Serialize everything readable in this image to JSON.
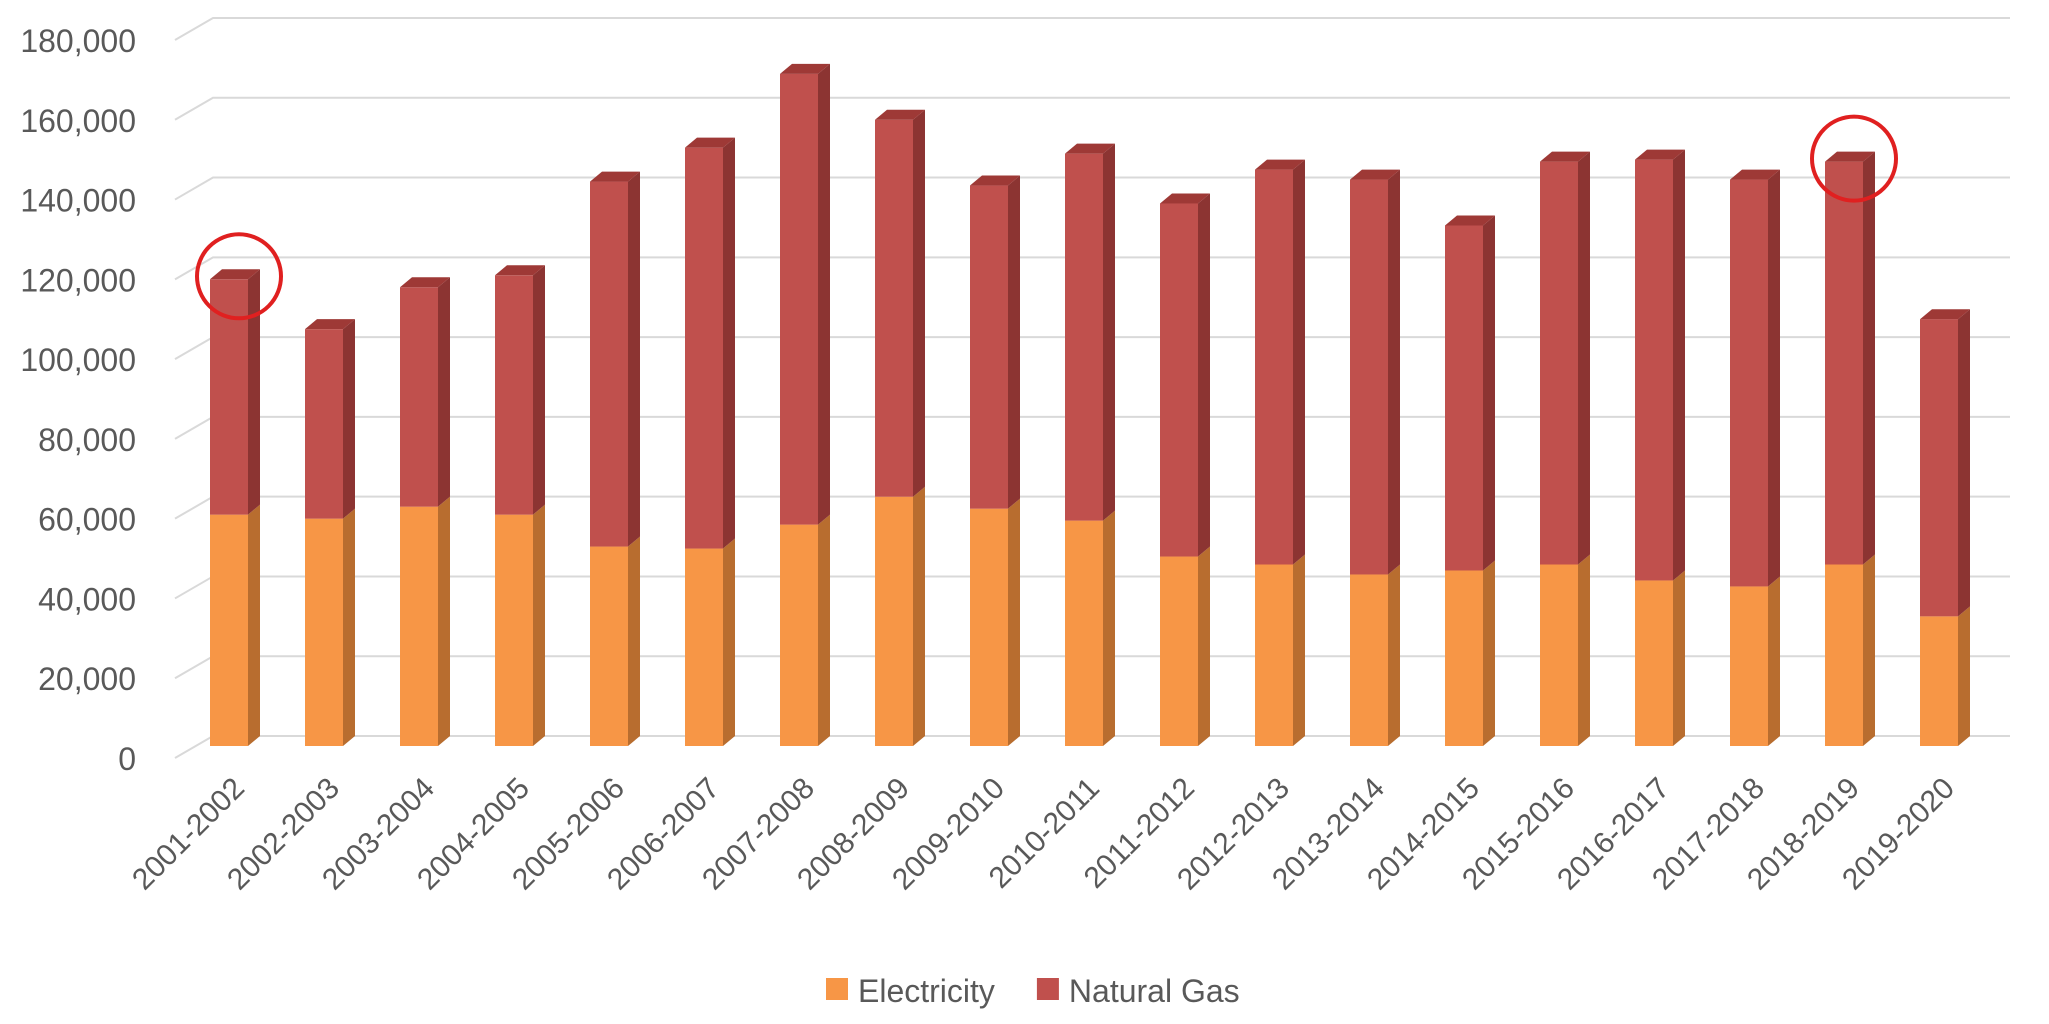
{
  "chart_data": {
    "type": "bar",
    "stacked": true,
    "three_d": true,
    "categories": [
      "2001-2002",
      "2002-2003",
      "2003-2004",
      "2004-2005",
      "2005-2006",
      "2006-2007",
      "2007-2008",
      "2008-2009",
      "2009-2010",
      "2010-2011",
      "2011-2012",
      "2012-2013",
      "2013-2014",
      "2014-2015",
      "2015-2016",
      "2016-2017",
      "2017-2018",
      "2018-2019",
      "2019-2020"
    ],
    "series": [
      {
        "name": "Electricity",
        "color": "#f79646",
        "side_color": "#b86d2f",
        "top_color": "#c07030",
        "values": [
          58000,
          57000,
          60000,
          58000,
          50000,
          49500,
          55500,
          62500,
          59500,
          56500,
          47500,
          45500,
          43000,
          44000,
          45500,
          41500,
          40000,
          45500,
          32500
        ]
      },
      {
        "name": "Natural Gas",
        "color": "#c0504d",
        "side_color": "#8c3432",
        "top_color": "#9e3936",
        "values": [
          59000,
          47500,
          55000,
          60000,
          91500,
          100500,
          113000,
          94500,
          81000,
          92000,
          88500,
          99000,
          99000,
          86500,
          101000,
          105500,
          102000,
          101000,
          74500
        ]
      }
    ],
    "title": "",
    "xlabel": "",
    "ylabel": "",
    "ylim": [
      0,
      180000
    ],
    "yticks": [
      "0",
      "20,000",
      "40,000",
      "60,000",
      "80,000",
      "100,000",
      "120,000",
      "140,000",
      "160,000",
      "180,000"
    ],
    "grid": true,
    "legend_position": "bottom",
    "highlight_circles": {
      "categories": [
        "2001-2002",
        "2018-2019"
      ],
      "color": "#e02020"
    },
    "colors": {
      "grid": "#d9d9d9",
      "text": "#595959"
    }
  }
}
